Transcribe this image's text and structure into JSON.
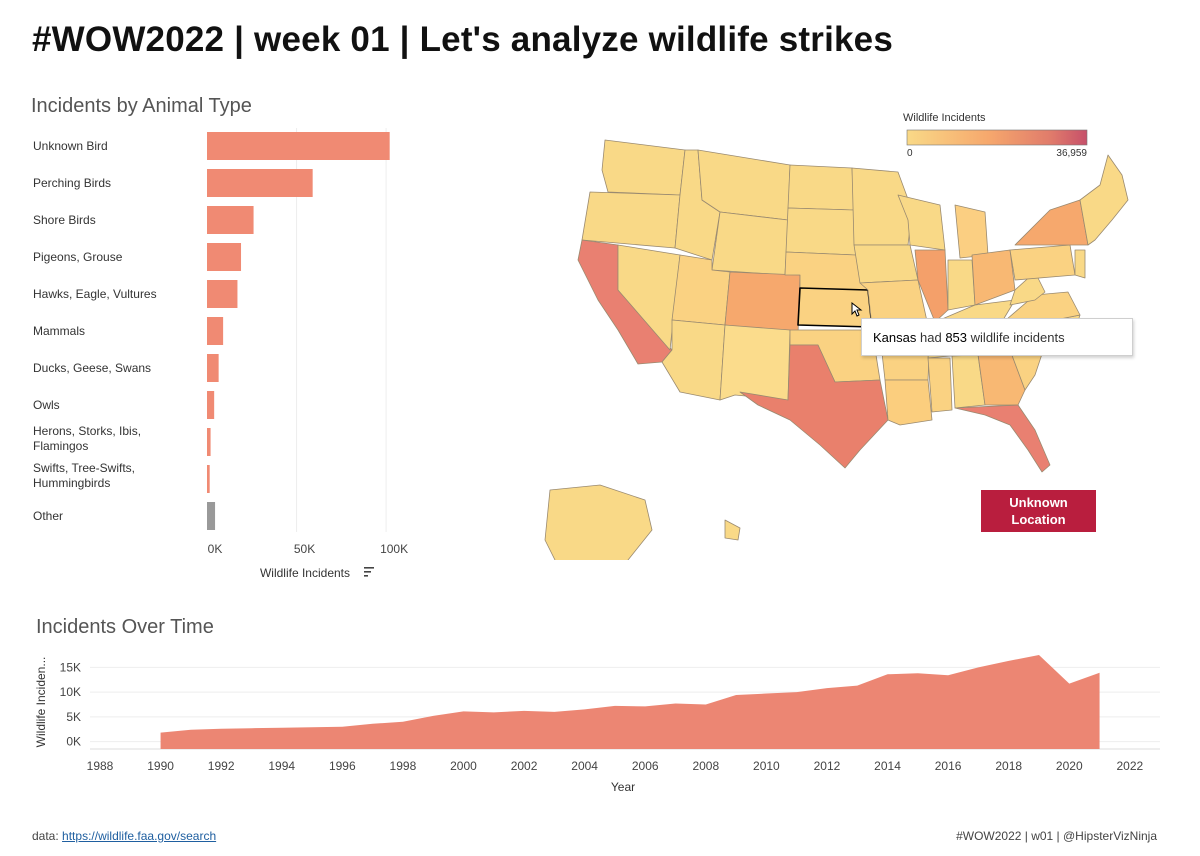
{
  "title": "#WOW2022 | week 01 | Let's analyze wildlife strikes",
  "tooltip": {
    "state": "Kansas",
    "had": "had",
    "count": "853",
    "suffix": "wildlife incidents"
  },
  "unknown_location": {
    "line1": "Unknown",
    "line2": "Location"
  },
  "map": {
    "legend_title": "Wildlife Incidents",
    "legend_min": "0",
    "legend_max": "36,959",
    "colors": {
      "low": "#f9d987",
      "mid": "#f6a86d",
      "high": "#e07b6b",
      "max": "#c6506a",
      "border": "#9a8a70"
    }
  },
  "footer": {
    "data_label": "data:",
    "data_link": "https://wildlife.faa.gov/search",
    "credit": "#WOW2022 | w01 | @HipsterVizNinja"
  },
  "chart_data": [
    {
      "type": "bar",
      "title": "Incidents by Animal Type",
      "orientation": "horizontal",
      "categories": [
        [
          "Unknown Bird"
        ],
        [
          "Perching Birds"
        ],
        [
          "Shore Birds"
        ],
        [
          "Pigeons, Grouse"
        ],
        [
          "Hawks, Eagle, Vultures"
        ],
        [
          "Mammals"
        ],
        [
          "Ducks, Geese, Swans"
        ],
        [
          "Owls"
        ],
        [
          "Herons, Storks, Ibis,",
          "Flamingos"
        ],
        [
          "Swifts, Tree-Swifts,",
          "Hummingbirds"
        ],
        [
          "Other"
        ]
      ],
      "values": [
        102000,
        59000,
        26000,
        19000,
        17000,
        9000,
        6500,
        4000,
        2000,
        1500,
        4500
      ],
      "highlight_color": "#f08a73",
      "other_color": "#999999",
      "xlim": [
        0,
        110000
      ],
      "xticks": [
        "0K",
        "50K",
        "100K"
      ],
      "xtick_values": [
        0,
        50000,
        100000
      ],
      "xlabel": "Wildlife Incidents",
      "sort_icon": "sort-descending-icon"
    },
    {
      "type": "area",
      "title": "Incidents Over Time",
      "x": [
        1990,
        1991,
        1992,
        1993,
        1994,
        1995,
        1996,
        1997,
        1998,
        1999,
        2000,
        2001,
        2002,
        2003,
        2004,
        2005,
        2006,
        2007,
        2008,
        2009,
        2010,
        2011,
        2012,
        2013,
        2014,
        2015,
        2016,
        2017,
        2018,
        2019,
        2020,
        2021
      ],
      "values": [
        1800,
        2400,
        2600,
        2700,
        2800,
        2900,
        3000,
        3600,
        4000,
        5200,
        6100,
        5900,
        6200,
        6000,
        6500,
        7200,
        7100,
        7700,
        7500,
        9400,
        9700,
        10000,
        10800,
        11300,
        13600,
        13800,
        13400,
        15000,
        16300,
        17500,
        11700,
        13900
      ],
      "color": "#ec8673",
      "xlim": [
        1988,
        2022.5
      ],
      "ylim": [
        -1500,
        18500
      ],
      "xticks": [
        "1988",
        "1990",
        "1992",
        "1994",
        "1996",
        "1998",
        "2000",
        "2002",
        "2004",
        "2006",
        "2008",
        "2010",
        "2012",
        "2014",
        "2016",
        "2018",
        "2020",
        "2022"
      ],
      "xtick_values": [
        1988,
        1990,
        1992,
        1994,
        1996,
        1998,
        2000,
        2002,
        2004,
        2006,
        2008,
        2010,
        2012,
        2014,
        2016,
        2018,
        2020,
        2022
      ],
      "yticks": [
        "0K",
        "5K",
        "10K",
        "15K"
      ],
      "ytick_values": [
        0,
        5000,
        10000,
        15000
      ],
      "xlabel": "Year",
      "ylabel": "Wildlife Inciden..."
    }
  ]
}
